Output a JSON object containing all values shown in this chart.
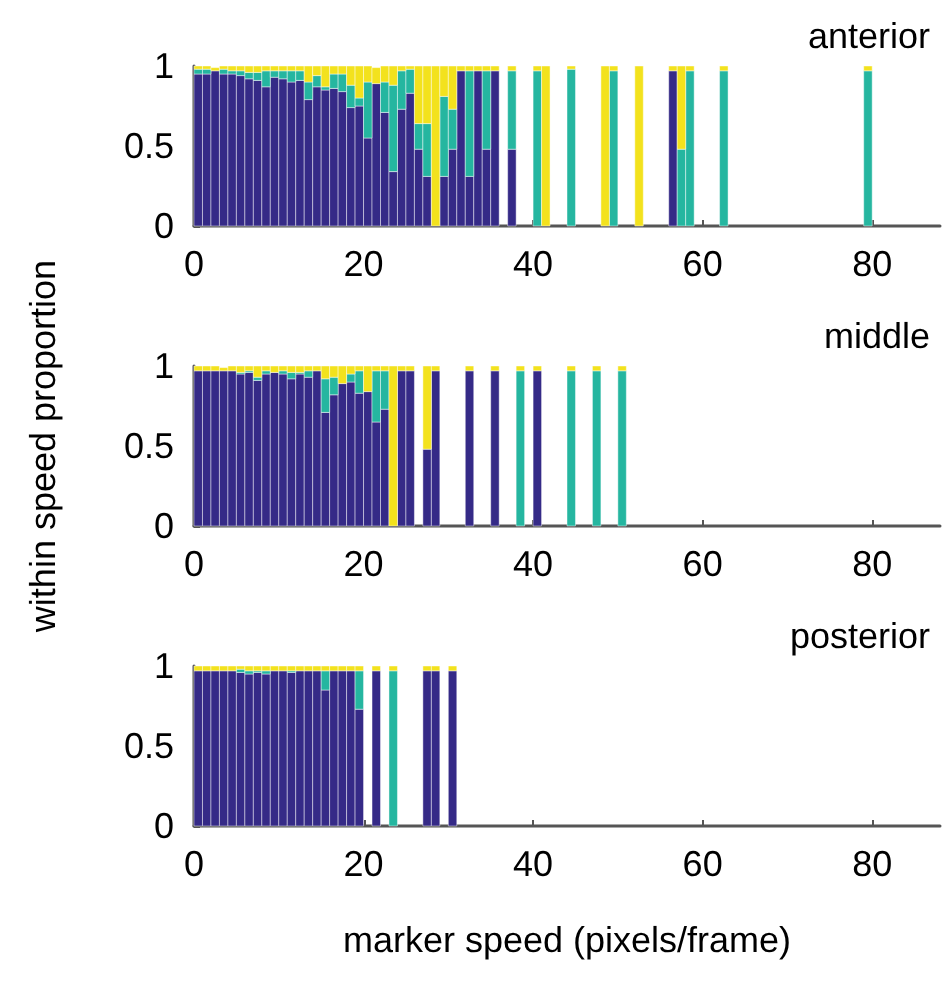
{
  "chart_data": [
    {
      "type": "bar",
      "title": "anterior",
      "stacked": true,
      "xlim": [
        0,
        88
      ],
      "xticks": [
        0,
        20,
        40,
        60,
        80
      ],
      "ylim": [
        0,
        1
      ],
      "yticks": [
        0,
        0.5,
        1
      ],
      "x": [
        0.5,
        1.5,
        2.5,
        3.5,
        4.5,
        5.5,
        6.5,
        7.5,
        8.5,
        9.5,
        10.5,
        11.5,
        12.5,
        13.5,
        14.5,
        15.5,
        16.5,
        17.5,
        18.5,
        19.5,
        20.5,
        21.5,
        22.5,
        23.5,
        24.5,
        25.5,
        26.5,
        27.5,
        28.5,
        29.5,
        30.5,
        31.5,
        32.5,
        33.5,
        34.5,
        35.5,
        37.5,
        40.5,
        41.5,
        44.5,
        48.5,
        49.5,
        52.5,
        56.5,
        57.5,
        58.5,
        62.5,
        79.5
      ],
      "series": [
        {
          "color": "#352a87",
          "values": [
            0.95,
            0.95,
            0.97,
            0.95,
            0.95,
            0.94,
            0.92,
            0.91,
            0.87,
            0.93,
            0.92,
            0.9,
            0.91,
            0.79,
            0.87,
            0.85,
            0.86,
            0.84,
            0.74,
            0.75,
            0.55,
            0.89,
            0.71,
            0.34,
            0.73,
            0.83,
            0.48,
            0.31,
            0,
            0.31,
            0.48,
            0.97,
            0.31,
            0.97,
            0.48,
            0.97,
            0.48,
            0,
            0,
            0,
            0,
            0,
            0,
            0.97,
            0,
            0,
            0,
            0
          ]
        },
        {
          "color": "#25b6a0",
          "values": [
            0.03,
            0.03,
            null,
            0.03,
            0.02,
            0.03,
            0.04,
            0.05,
            0.1,
            0.04,
            0.05,
            0.07,
            0.06,
            0.11,
            0.07,
            0.02,
            0.09,
            0.11,
            0.14,
            0.05,
            0.35,
            null,
            0.19,
            0.54,
            0.24,
            0.15,
            0.16,
            0.33,
            0,
            0.5,
            0.25,
            0,
            0.66,
            0,
            0.49,
            0,
            0.49,
            0.97,
            0,
            0.98,
            0,
            0.97,
            0,
            0,
            0.48,
            0.97,
            0.97,
            0.97
          ]
        },
        {
          "color": "#f3e21d",
          "values": [
            0.02,
            0.02,
            0.02,
            0.02,
            0.03,
            0.03,
            0.04,
            0.04,
            0.03,
            0.03,
            0.03,
            0.03,
            0.03,
            0.1,
            0.06,
            0.13,
            0.05,
            0.05,
            0.12,
            0.2,
            0.1,
            0.1,
            0.1,
            0.12,
            0.03,
            0.02,
            0.36,
            0.36,
            1,
            0.19,
            0.27,
            0.03,
            0.03,
            0.03,
            0.03,
            0.03,
            0.03,
            0.03,
            1,
            0.02,
            1,
            0.03,
            1,
            0.03,
            0.52,
            0.03,
            0.03,
            0.03
          ]
        }
      ]
    },
    {
      "type": "bar",
      "title": "middle",
      "ylabel": "within speed proportion",
      "stacked": true,
      "xlim": [
        0,
        88
      ],
      "xticks": [
        0,
        20,
        40,
        60,
        80
      ],
      "ylim": [
        0,
        1
      ],
      "yticks": [
        0,
        0.5,
        1
      ],
      "x": [
        0.5,
        1.5,
        2.5,
        3.5,
        4.5,
        5.5,
        6.5,
        7.5,
        8.5,
        9.5,
        10.5,
        11.5,
        12.5,
        13.5,
        14.5,
        15.5,
        16.5,
        17.5,
        18.5,
        19.5,
        20.5,
        21.5,
        22.5,
        23.5,
        24.5,
        25.5,
        27.5,
        28.5,
        32.5,
        35.5,
        38.5,
        40.5,
        44.5,
        47.5,
        50.5
      ],
      "series": [
        {
          "color": "#352a87",
          "values": [
            0.97,
            0.97,
            0.97,
            0.97,
            0.97,
            0.95,
            0.96,
            0.91,
            0.95,
            0.96,
            0.95,
            0.92,
            0.95,
            0.93,
            0.97,
            0.71,
            0.82,
            0.89,
            0.9,
            0.83,
            0.84,
            0.65,
            0.73,
            0,
            0.97,
            0.97,
            0.48,
            0.97,
            0.97,
            0.97,
            0,
            0.97,
            0,
            0,
            0
          ]
        },
        {
          "color": "#25b6a0",
          "values": [
            0,
            0,
            0,
            null,
            0,
            0.01,
            0.01,
            0.02,
            0.02,
            0,
            0.02,
            0.04,
            0.01,
            0.04,
            0,
            0.21,
            0.11,
            0,
            0.05,
            0.14,
            0,
            0.32,
            0.24,
            0,
            0,
            0,
            0,
            0,
            0,
            0,
            0.97,
            0,
            0.97,
            0.97,
            0.97
          ]
        },
        {
          "color": "#f3e21d",
          "values": [
            0.03,
            0.03,
            0.03,
            0.02,
            0.03,
            0.04,
            0.03,
            0.07,
            0.03,
            0.04,
            0.03,
            0.04,
            0.04,
            0.03,
            0.03,
            0.08,
            0.07,
            0.11,
            0.05,
            0.03,
            0.16,
            0.03,
            0.03,
            1,
            0.03,
            0.03,
            0.52,
            0.03,
            0.03,
            0.03,
            0.03,
            0.03,
            0.03,
            0.03,
            0.03
          ]
        }
      ]
    },
    {
      "type": "bar",
      "title": "posterior",
      "xlabel": "marker speed (pixels/frame)",
      "stacked": true,
      "xlim": [
        0,
        88
      ],
      "xticks": [
        0,
        20,
        40,
        60,
        80
      ],
      "ylim": [
        0,
        1
      ],
      "yticks": [
        0,
        0.5,
        1
      ],
      "x": [
        0.5,
        1.5,
        2.5,
        3.5,
        4.5,
        5.5,
        6.5,
        7.5,
        8.5,
        9.5,
        10.5,
        11.5,
        12.5,
        13.5,
        14.5,
        15.5,
        16.5,
        17.5,
        18.5,
        19.5,
        21.5,
        23.5,
        27.5,
        28.5,
        30.5
      ],
      "series": [
        {
          "color": "#352a87",
          "values": [
            0.97,
            0.97,
            0.97,
            0.97,
            0.97,
            0.96,
            0.95,
            0.96,
            0.95,
            0.97,
            0.97,
            0.96,
            0.97,
            0.97,
            0.97,
            0.85,
            0.97,
            0.97,
            0.97,
            0.73,
            0.97,
            0,
            0.97,
            0.97,
            0.97
          ]
        },
        {
          "color": "#25b6a0",
          "values": [
            0,
            0,
            0,
            0,
            0,
            0.02,
            0.02,
            0.01,
            0.02,
            0,
            0,
            0.01,
            0,
            0,
            0,
            0.12,
            0,
            0,
            0,
            0.24,
            0,
            0.97,
            0,
            0,
            0
          ]
        },
        {
          "color": "#f3e21d",
          "values": [
            0.03,
            0.03,
            0.03,
            0.03,
            0.03,
            0.02,
            0.03,
            0.03,
            0.03,
            0.03,
            0.03,
            0.03,
            0.03,
            0.03,
            0.03,
            0.03,
            0.03,
            0.03,
            0.03,
            0.03,
            0.03,
            0.03,
            0.03,
            0.03,
            0.03
          ]
        }
      ]
    }
  ]
}
